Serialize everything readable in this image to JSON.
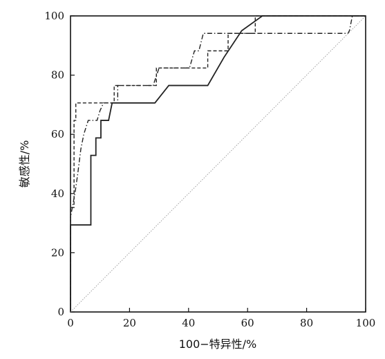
{
  "chart_data": {
    "type": "line",
    "title": "",
    "xlabel": "100−特异性/%",
    "ylabel": "敏感性/%",
    "xlim": [
      0,
      100
    ],
    "ylim": [
      0,
      100
    ],
    "x_ticks": [
      "0",
      "20",
      "40",
      "60",
      "80",
      "100"
    ],
    "y_ticks": [
      "0",
      "20",
      "40",
      "60",
      "80",
      "100"
    ],
    "grid": false,
    "legend": "none",
    "series": [
      {
        "style": "solid",
        "color": "#222222",
        "points": [
          [
            0,
            0
          ],
          [
            0,
            29.4
          ],
          [
            6.9,
            29.4
          ],
          [
            6.9,
            52.9
          ],
          [
            8.6,
            52.9
          ],
          [
            8.6,
            58.8
          ],
          [
            10.3,
            58.8
          ],
          [
            10.3,
            64.7
          ],
          [
            12.9,
            64.7
          ],
          [
            14.1,
            70.6
          ],
          [
            28.6,
            70.6
          ],
          [
            33.3,
            76.5
          ],
          [
            46.5,
            76.5
          ],
          [
            52,
            86
          ],
          [
            58,
            95
          ],
          [
            65,
            100
          ],
          [
            100,
            100
          ]
        ]
      },
      {
        "style": "dashed",
        "color": "#222222",
        "points": [
          [
            0,
            0
          ],
          [
            0,
            35.3
          ],
          [
            1.2,
            35.3
          ],
          [
            1.2,
            64.7
          ],
          [
            1.8,
            64.7
          ],
          [
            1.8,
            70.6
          ],
          [
            14.8,
            70.6
          ],
          [
            14.8,
            76.5
          ],
          [
            29.1,
            76.5
          ],
          [
            29.1,
            82.4
          ],
          [
            46.5,
            82.4
          ],
          [
            46.5,
            88.2
          ],
          [
            53.4,
            88.2
          ],
          [
            53.4,
            94.1
          ],
          [
            62.6,
            94.1
          ],
          [
            62.6,
            100
          ],
          [
            100,
            100
          ]
        ]
      },
      {
        "style": "dash-dot",
        "color": "#222222",
        "points": [
          [
            0,
            0
          ],
          [
            0,
            32
          ],
          [
            1.5,
            40
          ],
          [
            2.5,
            47
          ],
          [
            3.5,
            55
          ],
          [
            4.5,
            60
          ],
          [
            6,
            64.7
          ],
          [
            9,
            64.7
          ],
          [
            10,
            68
          ],
          [
            11.2,
            70.6
          ],
          [
            16,
            70.6
          ],
          [
            16,
            76.5
          ],
          [
            28,
            76.5
          ],
          [
            30,
            82.4
          ],
          [
            40.3,
            82.4
          ],
          [
            42,
            88.2
          ],
          [
            43.5,
            88.2
          ],
          [
            45,
            94.1
          ],
          [
            94,
            94.1
          ],
          [
            94.5,
            95
          ],
          [
            95.5,
            100
          ],
          [
            100,
            100
          ]
        ]
      },
      {
        "style": "reference",
        "color": "#888888",
        "points": [
          [
            0,
            0
          ],
          [
            100,
            100
          ]
        ]
      }
    ]
  }
}
